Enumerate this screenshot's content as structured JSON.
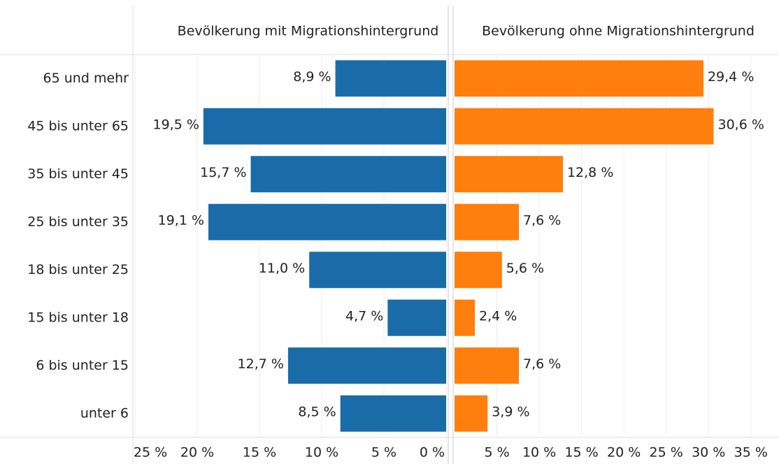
{
  "chart_data": {
    "type": "bar",
    "categories": [
      "65 und mehr",
      "45 bis unter 65",
      "35 bis unter 45",
      "25 bis unter 35",
      "18 bis unter 25",
      "15 bis unter 18",
      "6 bis unter 15",
      "unter 6"
    ],
    "series": [
      {
        "name": "Bevölkerung mit Migrationshintergrund",
        "color": "#1a6ca8",
        "values": [
          8.9,
          19.5,
          15.7,
          19.1,
          11.0,
          4.7,
          12.7,
          8.5
        ],
        "value_labels": [
          "8,9 %",
          "19,5 %",
          "15,7 %",
          "19,1 %",
          "11,0 %",
          "4,7 %",
          "12,7 %",
          "8,5 %"
        ],
        "xlim": [
          0,
          25
        ],
        "reversed": true,
        "xticks": [
          {
            "value": 25,
            "label": "25 %"
          },
          {
            "value": 20,
            "label": "20 %"
          },
          {
            "value": 15,
            "label": "15 %"
          },
          {
            "value": 10,
            "label": "10 %"
          },
          {
            "value": 5,
            "label": "5 %"
          },
          {
            "value": 0,
            "label": "0 %"
          }
        ]
      },
      {
        "name": "Bevölkerung ohne Migrationshintergrund",
        "color": "#ff7f0e",
        "values": [
          29.4,
          30.6,
          12.8,
          7.6,
          5.6,
          2.4,
          7.6,
          3.9
        ],
        "value_labels": [
          "29,4 %",
          "30,6 %",
          "12,8 %",
          "7,6 %",
          "5,6 %",
          "2,4 %",
          "7,6 %",
          "3,9 %"
        ],
        "xlim": [
          0,
          37
        ],
        "reversed": false,
        "xticks": [
          {
            "value": 5,
            "label": "5 %"
          },
          {
            "value": 10,
            "label": "10 %"
          },
          {
            "value": 15,
            "label": "15 %"
          },
          {
            "value": 20,
            "label": "20 %"
          },
          {
            "value": 25,
            "label": "25 %"
          },
          {
            "value": 30,
            "label": "30 %"
          },
          {
            "value": 35,
            "label": "35 %"
          }
        ]
      }
    ],
    "grid": true
  }
}
